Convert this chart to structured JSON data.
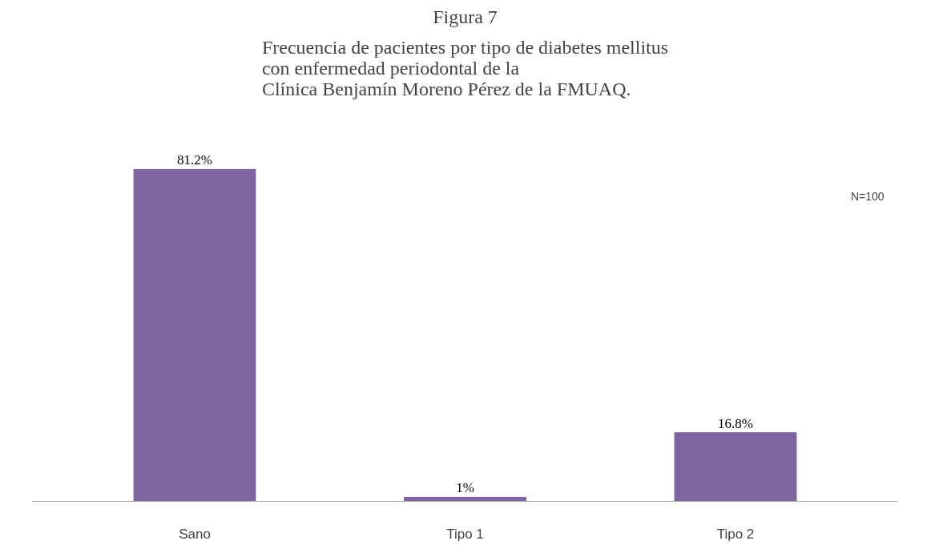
{
  "chart_data": {
    "type": "bar",
    "title": "Figura 7",
    "subtitle": "Frecuencia de pacientes por tipo de diabetes mellitus\ncon enfermedad periodontal de la\nClínica Benjamín Moreno Pérez de la FMUAQ.",
    "categories": [
      "Sano",
      "Tipo 1",
      "Tipo 2"
    ],
    "values": [
      81.2,
      1,
      16.8
    ],
    "value_labels": [
      "81.2%",
      "1%",
      "16.8%"
    ],
    "color": "#8064a2",
    "annotations": [
      "N=100"
    ],
    "grid": false
  }
}
